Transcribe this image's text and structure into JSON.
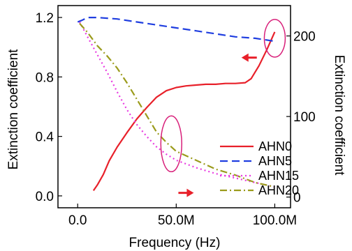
{
  "chart_data": {
    "type": "line",
    "xlabel": "Frequency (Hz)",
    "ylabel_left": "Extinction coefficient",
    "ylabel_right": "Extinction coefficient",
    "x_tick_labels": [
      "0.0",
      "50.0M",
      "100.0M"
    ],
    "x_tick_values": [
      0,
      50000000,
      100000000
    ],
    "y_left_tick_labels": [
      "0.0",
      "0.4",
      "0.8",
      "1.2"
    ],
    "y_left_tick_values": [
      0,
      0.4,
      0.8,
      1.2
    ],
    "y_right_tick_labels": [
      "0",
      "100",
      "200"
    ],
    "y_right_tick_values": [
      0,
      100,
      200
    ],
    "xlim": [
      -10000000,
      108000000
    ],
    "ylim_left": [
      -0.08,
      1.28
    ],
    "ylim_right": [
      -13.3,
      237.7
    ],
    "legend_position": "center-right",
    "grid": false,
    "series": [
      {
        "name": "AHN0",
        "axis": "right",
        "color": "#e8202a",
        "dash": "solid",
        "x": [
          8000000,
          10000000,
          13000000,
          16000000,
          20000000,
          25000000,
          30000000,
          35000000,
          40000000,
          45000000,
          50000000,
          55000000,
          60000000,
          65000000,
          70000000,
          75000000,
          80000000,
          85000000,
          88000000,
          92000000,
          96000000,
          100000000
        ],
        "y": [
          8,
          15,
          28,
          45,
          62,
          80,
          97,
          111,
          124,
          132,
          136,
          138,
          139,
          140,
          140,
          141,
          141,
          142,
          147,
          163,
          183,
          205
        ]
      },
      {
        "name": "AHN5",
        "axis": "left",
        "color": "#1f3ee0",
        "dash": "dashed",
        "x": [
          0,
          2000000,
          5000000,
          10000000,
          20000000,
          30000000,
          40000000,
          50000000,
          60000000,
          70000000,
          80000000,
          90000000,
          95000000,
          100000000
        ],
        "y": [
          1.17,
          1.18,
          1.2,
          1.2,
          1.19,
          1.17,
          1.15,
          1.13,
          1.11,
          1.09,
          1.07,
          1.06,
          1.05,
          1.04
        ]
      },
      {
        "name": "AHN15",
        "axis": "left",
        "color": "#e83ae0",
        "dash": "dotted",
        "x": [
          1000000,
          5000000,
          10000000,
          15000000,
          20000000,
          25000000,
          30000000,
          35000000,
          40000000,
          45000000,
          50000000,
          60000000,
          70000000,
          80000000,
          90000000,
          100000000
        ],
        "y": [
          1.17,
          1.07,
          0.95,
          0.83,
          0.7,
          0.58,
          0.48,
          0.4,
          0.33,
          0.28,
          0.24,
          0.19,
          0.15,
          0.12,
          0.09,
          0.06
        ]
      },
      {
        "name": "AHN20",
        "axis": "left",
        "color": "#9b9b1c",
        "dash": "dashdot",
        "x": [
          1000000,
          5000000,
          10000000,
          15000000,
          20000000,
          25000000,
          30000000,
          35000000,
          40000000,
          45000000,
          50000000,
          60000000,
          70000000,
          80000000,
          90000000,
          100000000
        ],
        "y": [
          1.16,
          1.1,
          1.01,
          0.94,
          0.86,
          0.76,
          0.65,
          0.54,
          0.43,
          0.36,
          0.3,
          0.24,
          0.18,
          0.14,
          0.09,
          0.06
        ]
      }
    ],
    "annotations": [
      {
        "kind": "ellipse",
        "color": "#d8207a",
        "x": 100000000,
        "y_left": 1.06,
        "note": "encircles AHN5 / AHN0 right ends"
      },
      {
        "kind": "ellipse",
        "color": "#d8207a",
        "x": 47500000,
        "y_left": 0.35,
        "note": "encircles AHN15 / AHN20 near 50M"
      },
      {
        "kind": "arrow",
        "color": "#e8202a",
        "direction": "left",
        "x": 87000000,
        "y_left": 0.93
      },
      {
        "kind": "arrow",
        "color": "#e8202a",
        "direction": "right",
        "x": 55000000,
        "y_left": 0.02
      }
    ]
  }
}
